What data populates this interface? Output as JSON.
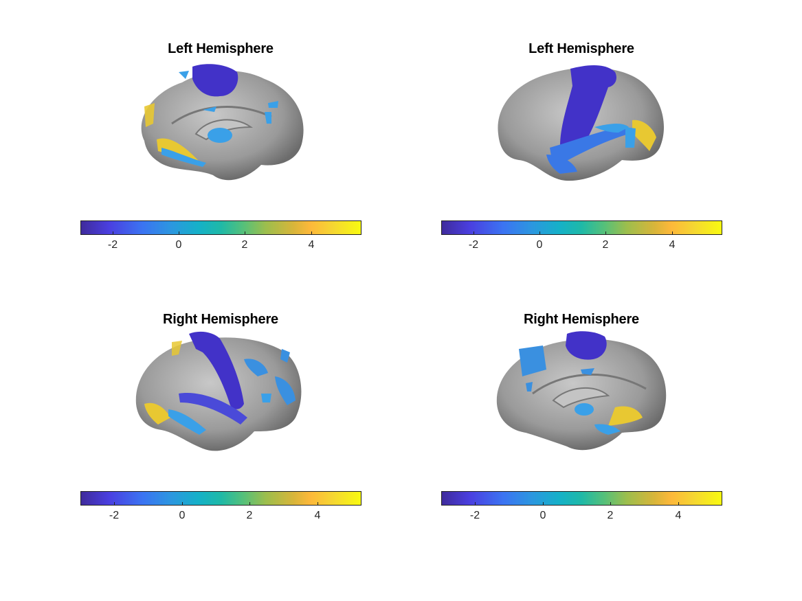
{
  "panels": [
    {
      "title": "Left Hemisphere",
      "view": "medial",
      "colorbar_ticks": [
        "-2",
        "0",
        "2",
        "4"
      ]
    },
    {
      "title": "Left Hemisphere",
      "view": "lateral",
      "colorbar_ticks": [
        "-2",
        "0",
        "2",
        "4"
      ]
    },
    {
      "title": "Right Hemisphere",
      "view": "lateral",
      "colorbar_ticks": [
        "-2",
        "0",
        "2",
        "4"
      ]
    },
    {
      "title": "Right Hemisphere",
      "view": "medial",
      "colorbar_ticks": [
        "-2",
        "0",
        "2",
        "4"
      ]
    }
  ],
  "colorbar": {
    "colormap": "parula",
    "colors": [
      "#3e26a8",
      "#4a3fe0",
      "#2c96e0",
      "#15b1c8",
      "#55c07a",
      "#fdb83a",
      "#f9fb0e"
    ],
    "top_range": [
      -3,
      5.5
    ],
    "bottom_range": [
      -3,
      5.2
    ]
  },
  "surface_colors": {
    "cortex": "#9b9b9b",
    "negative": "#4232c8",
    "mid_negative": "#3aa0e8",
    "positive": "#e8c832"
  }
}
